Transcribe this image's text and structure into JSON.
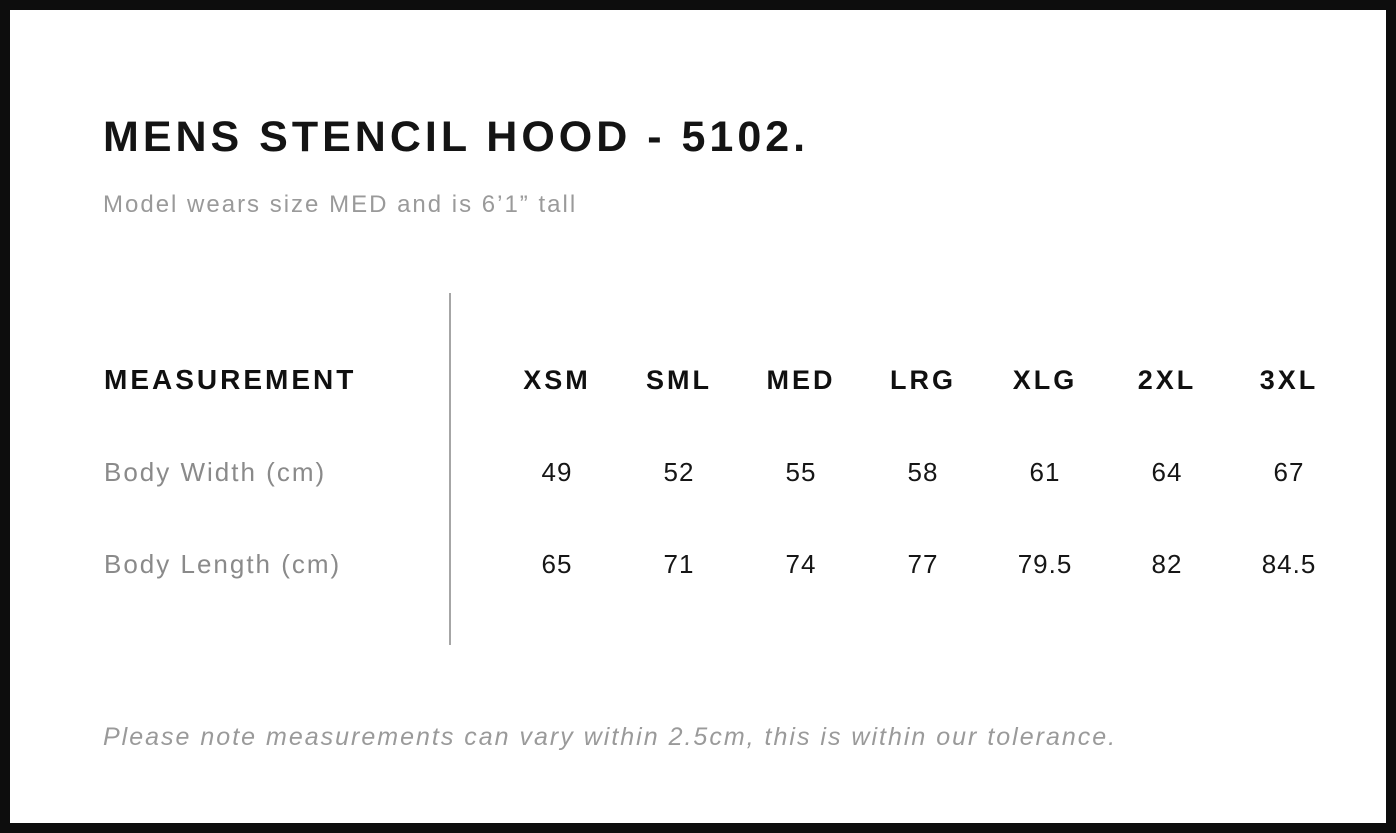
{
  "page": {
    "title": "MENS STENCIL HOOD - 5102.",
    "subtitle": "Model wears size MED and is 6’1” tall",
    "footer_note": "Please note measurements can vary within 2.5cm, this is within our tolerance."
  },
  "colors": {
    "background": "#ffffff",
    "border": "#0d0d0d",
    "heading_text": "#141414",
    "value_text": "#161616",
    "muted_text": "#9a9a9a",
    "row_label_text": "#8a8a8a",
    "divider_line": "#a6a6a6"
  },
  "chart_data": {
    "type": "table",
    "title": "MENS STENCIL HOOD - 5102.",
    "subtitle": "Model wears size MED and is 6’1” tall",
    "columns": [
      "MEASUREMENT",
      "XSM",
      "SML",
      "MED",
      "LRG",
      "XLG",
      "2XL",
      "3XL"
    ],
    "rows": [
      {
        "label": "Body Width (cm)",
        "values": [
          49,
          52,
          55,
          58,
          61,
          64,
          67
        ]
      },
      {
        "label": "Body Length (cm)",
        "values": [
          65,
          71,
          74,
          77,
          79.5,
          82,
          84.5
        ]
      }
    ],
    "footnote": "Please note measurements can vary within 2.5cm, this is within our tolerance.",
    "layout_hints": {
      "label_column_divider": true,
      "grid": "off",
      "units": "cm",
      "tolerance_cm": 2.5
    }
  }
}
